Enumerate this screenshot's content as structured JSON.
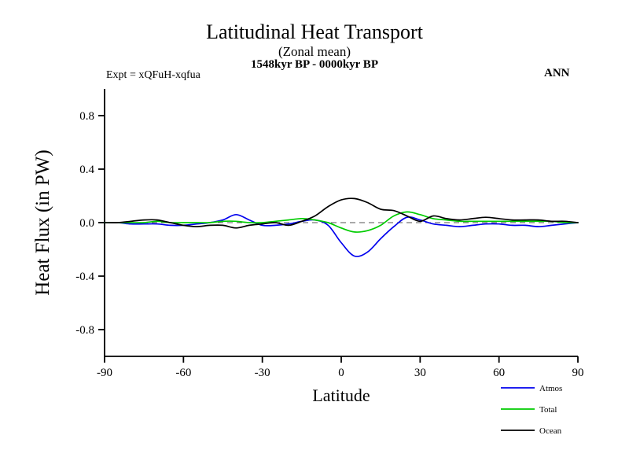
{
  "header": {
    "title": "Latitudinal Heat Transport",
    "subtitle1": "(Zonal mean)",
    "subtitle2": "1548kyr BP - 0000kyr BP",
    "expt_label": "Expt = xQFuH-xqfua",
    "season_label": "ANN"
  },
  "axes": {
    "ylabel": "Heat Flux (in PW)",
    "xlabel": "Latitude"
  },
  "chart_data": {
    "type": "line",
    "title": "Latitudinal Heat Transport",
    "subtitle": "(Zonal mean) 1548kyr BP - 0000kyr BP",
    "xlabel": "Latitude",
    "ylabel": "Heat Flux (in PW)",
    "xlim": [
      -90,
      90
    ],
    "ylim": [
      -1.0,
      1.0
    ],
    "xticks": [
      -90,
      -60,
      -30,
      0,
      30,
      60,
      90
    ],
    "yticks": [
      -0.8,
      -0.4,
      0.0,
      0.4,
      0.8
    ],
    "zero_line": true,
    "grid": false,
    "legend_position": "bottom-right",
    "x": [
      -90,
      -85,
      -80,
      -75,
      -70,
      -65,
      -60,
      -55,
      -50,
      -45,
      -40,
      -35,
      -30,
      -25,
      -20,
      -15,
      -10,
      -5,
      0,
      5,
      10,
      15,
      20,
      25,
      30,
      35,
      40,
      45,
      50,
      55,
      60,
      65,
      70,
      75,
      80,
      85,
      90
    ],
    "series": [
      {
        "name": "Atmos",
        "color": "#0000ee",
        "values": [
          0.0,
          0.0,
          -0.01,
          -0.01,
          -0.01,
          -0.02,
          -0.02,
          -0.01,
          0.0,
          0.02,
          0.06,
          0.02,
          -0.02,
          -0.02,
          -0.01,
          0.01,
          0.02,
          -0.02,
          -0.15,
          -0.25,
          -0.22,
          -0.12,
          -0.03,
          0.04,
          0.02,
          -0.01,
          -0.02,
          -0.03,
          -0.02,
          -0.01,
          -0.01,
          -0.02,
          -0.02,
          -0.03,
          -0.02,
          -0.01,
          0.0
        ]
      },
      {
        "name": "Total",
        "color": "#00cc00",
        "values": [
          0.0,
          0.0,
          0.0,
          0.0,
          0.01,
          0.0,
          0.0,
          0.0,
          0.0,
          0.01,
          0.01,
          0.0,
          0.0,
          0.01,
          0.02,
          0.03,
          0.02,
          0.0,
          -0.04,
          -0.07,
          -0.06,
          -0.02,
          0.05,
          0.08,
          0.06,
          0.03,
          0.02,
          0.01,
          0.01,
          0.01,
          0.01,
          0.01,
          0.01,
          0.01,
          0.01,
          0.0,
          0.0
        ]
      },
      {
        "name": "Ocean",
        "color": "#000000",
        "values": [
          0.0,
          0.0,
          0.01,
          0.02,
          0.02,
          0.0,
          -0.02,
          -0.03,
          -0.02,
          -0.02,
          -0.04,
          -0.02,
          -0.01,
          0.0,
          -0.02,
          0.01,
          0.05,
          0.12,
          0.17,
          0.18,
          0.15,
          0.1,
          0.09,
          0.05,
          0.01,
          0.05,
          0.03,
          0.02,
          0.03,
          0.04,
          0.03,
          0.02,
          0.02,
          0.02,
          0.01,
          0.01,
          0.0
        ]
      }
    ]
  }
}
